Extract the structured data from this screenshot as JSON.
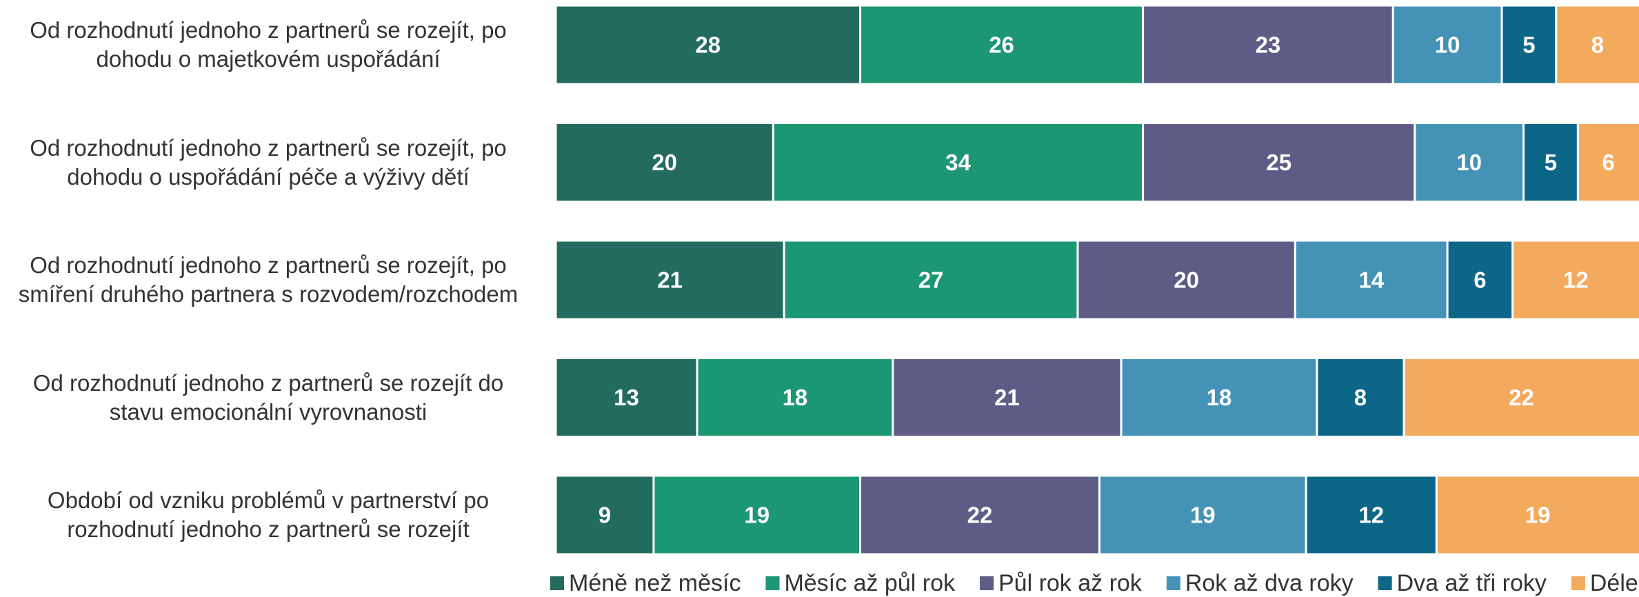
{
  "chart_data": {
    "type": "stacked-bar-horizontal",
    "categories": [
      "Od rozhodnutí jednoho z partnerů se rozejít, po dohodu o majetkovém uspořádání",
      "Od rozhodnutí jednoho z partnerů se rozejít, po dohodu o uspořádání péče a výživy dětí",
      "Od rozhodnutí jednoho z partnerů se rozejít, po smíření druhého partnera s rozvodem/rozchodem",
      "Od rozhodnutí jednoho z partnerů se rozejít do stavu emocionální vyrovnanosti",
      "Období od vzniku problémů v partnerství po rozhodnutí jednoho z partnerů se rozejít"
    ],
    "series": [
      {
        "name": "Méně než měsíc",
        "color": "#226b5e",
        "values": [
          28,
          20,
          21,
          13,
          9
        ]
      },
      {
        "name": "Měsíc až půl rok",
        "color": "#1b9772",
        "values": [
          26,
          34,
          27,
          18,
          19
        ]
      },
      {
        "name": "Půl rok až rok",
        "color": "#5e5c86",
        "values": [
          23,
          25,
          20,
          21,
          22
        ]
      },
      {
        "name": "Rok až dva roky",
        "color": "#4493b6",
        "values": [
          10,
          10,
          14,
          18,
          19
        ]
      },
      {
        "name": "Dva až tři roky",
        "color": "#0c6688",
        "values": [
          5,
          5,
          6,
          8,
          12
        ]
      },
      {
        "name": "Déle",
        "color": "#f3aa5d",
        "values": [
          8,
          6,
          12,
          22,
          19
        ]
      }
    ],
    "xlim": [
      0,
      100
    ]
  }
}
